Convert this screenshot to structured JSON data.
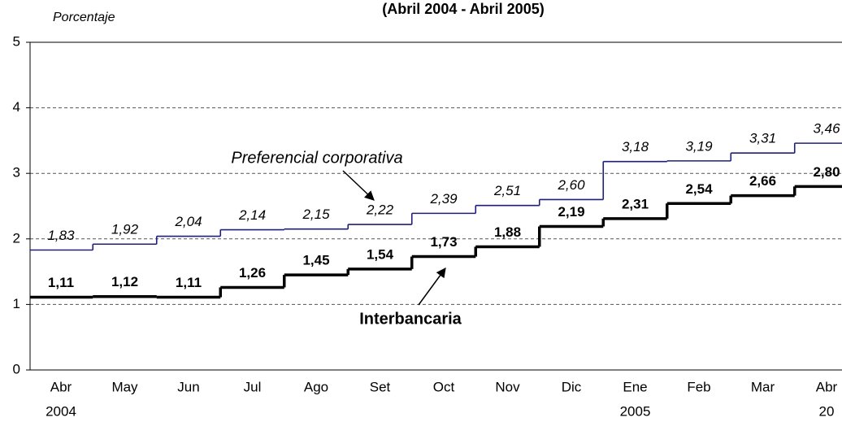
{
  "chart_data": {
    "type": "step",
    "title": "(Abril 2004 - Abril 2005)",
    "y_label": "Porcentaje",
    "categories": [
      "Abr",
      "May",
      "Jun",
      "Jul",
      "Ago",
      "Set",
      "Oct",
      "Nov",
      "Dic",
      "Ene",
      "Feb",
      "Mar",
      "Abr"
    ],
    "year_labels": [
      "2004",
      null,
      null,
      null,
      null,
      null,
      null,
      null,
      null,
      "2005",
      null,
      null,
      "20"
    ],
    "ylim": [
      0,
      5
    ],
    "yticks": [
      0,
      1,
      2,
      3,
      4,
      5
    ],
    "grid": true,
    "series": [
      {
        "name": "Preferencial corporativa",
        "color": "#1f1f7a",
        "style": "italic",
        "values": [
          1.83,
          1.92,
          2.04,
          2.14,
          2.15,
          2.22,
          2.39,
          2.51,
          2.6,
          3.18,
          3.19,
          3.31,
          3.46
        ],
        "value_labels": [
          "1,83",
          "1,92",
          "2,04",
          "2,14",
          "2,15",
          "2,22",
          "2,39",
          "2,51",
          "2,60",
          "3,18",
          "3,19",
          "3,31",
          "3,46"
        ]
      },
      {
        "name": "Interbancaria",
        "color": "#000000",
        "style": "bold",
        "values": [
          1.11,
          1.12,
          1.11,
          1.26,
          1.45,
          1.54,
          1.73,
          1.88,
          2.19,
          2.31,
          2.54,
          2.66,
          2.8
        ],
        "value_labels": [
          "1,11",
          "1,12",
          "1,11",
          "1,26",
          "1,45",
          "1,54",
          "1,73",
          "1,88",
          "2,19",
          "2,31",
          "2,54",
          "2,66",
          "2,80"
        ]
      }
    ]
  }
}
